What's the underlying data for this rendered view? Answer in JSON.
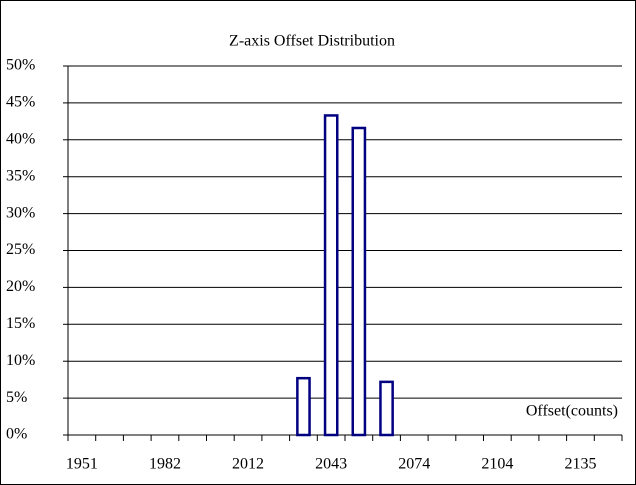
{
  "chart_data": {
    "type": "bar",
    "title": "Z-axis Offset Distribution",
    "x_label": "Offset(counts)",
    "categories": [
      "1951",
      null,
      null,
      "1982",
      null,
      null,
      "2012",
      null,
      null,
      "2043",
      null,
      null,
      "2074",
      null,
      null,
      "2104",
      null,
      null,
      "2135",
      null
    ],
    "values": [
      0,
      0,
      0,
      0,
      0,
      0,
      0,
      0,
      7.7,
      43.3,
      41.6,
      7.2,
      0,
      0,
      0,
      0,
      0,
      0,
      0,
      0
    ],
    "color": "#ffffff",
    "edge_color": "#000080",
    "ylim": [
      0,
      50
    ],
    "yticks": [
      {
        "value": 0,
        "label": "0%"
      },
      {
        "value": 5,
        "label": "5%"
      },
      {
        "value": 10,
        "label": "10%"
      },
      {
        "value": 15,
        "label": "15%"
      },
      {
        "value": 20,
        "label": "20%"
      },
      {
        "value": 25,
        "label": "25%"
      },
      {
        "value": 30,
        "label": "30%"
      },
      {
        "value": 35,
        "label": "35%"
      },
      {
        "value": 40,
        "label": "40%"
      },
      {
        "value": 45,
        "label": "45%"
      },
      {
        "value": 50,
        "label": "50%"
      }
    ],
    "grid": true
  }
}
